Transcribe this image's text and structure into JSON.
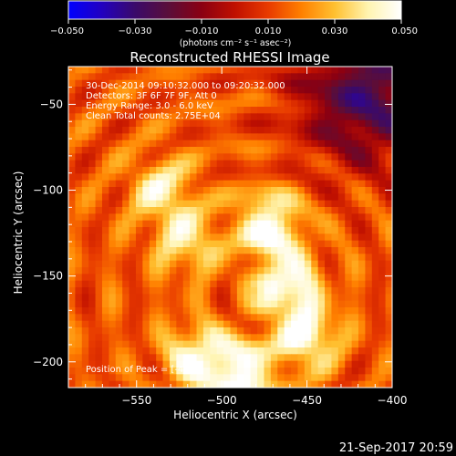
{
  "chart_data": {
    "type": "heatmap",
    "title": "Reconstructed RHESSI Image",
    "xlabel": "Heliocentric X (arcsec)",
    "ylabel": "Heliocentric Y (arcsec)",
    "xlim": [
      -590,
      -400
    ],
    "ylim": [
      -215,
      -28
    ],
    "x_ticks": [
      {
        "value": -550,
        "label": "−550"
      },
      {
        "value": -500,
        "label": "−500"
      },
      {
        "value": -450,
        "label": "−450"
      },
      {
        "value": -400,
        "label": "−400"
      }
    ],
    "y_ticks": [
      {
        "value": -50,
        "label": "−50"
      },
      {
        "value": -100,
        "label": "−100"
      },
      {
        "value": -150,
        "label": "−150"
      },
      {
        "value": -200,
        "label": "−200"
      }
    ],
    "info_lines": [
      "30-Dec-2014 09:10:32.000 to 09:20:32.000",
      "Detectors: 3F 6F 7F 9F, Att 0",
      "Energy Range: 3.0 - 6.0 keV",
      "Clean     Total counts: 2.75E+04"
    ],
    "peak_label": "Position of Peak = [-486.",
    "colorbar": {
      "range": [
        -0.05,
        0.05
      ],
      "ticks": [
        {
          "value": -0.05,
          "label": "−0.050"
        },
        {
          "value": -0.03,
          "label": "−0.030"
        },
        {
          "value": -0.01,
          "label": "−0.010"
        },
        {
          "value": 0.01,
          "label": "0.010"
        },
        {
          "value": 0.03,
          "label": "0.030"
        },
        {
          "value": 0.05,
          "label": "0.050"
        }
      ],
      "units_text": "(photons cm⁻² s⁻¹ asec⁻²)",
      "colormap": [
        "#0000ff",
        "#2200c0",
        "#3a0a6a",
        "#5a0e3a",
        "#8a0012",
        "#c01000",
        "#e83a00",
        "#ff8000",
        "#ffc030",
        "#fff4b0",
        "#ffffff"
      ]
    },
    "bright_sources": [
      {
        "x": -472,
        "y": -120,
        "intensity": 0.05
      },
      {
        "x": -462,
        "y": -155,
        "intensity": 0.048
      },
      {
        "x": -450,
        "y": -185,
        "intensity": 0.046
      },
      {
        "x": -488,
        "y": -207,
        "intensity": 0.05
      },
      {
        "x": -515,
        "y": -197,
        "intensity": 0.042
      },
      {
        "x": -535,
        "y": -100,
        "intensity": 0.036
      },
      {
        "x": -520,
        "y": -130,
        "intensity": 0.034
      }
    ],
    "dim_region": {
      "x": -415,
      "y": -45,
      "intensity": -0.02
    }
  },
  "footer": {
    "date": "21-Sep-2017 20:59"
  }
}
